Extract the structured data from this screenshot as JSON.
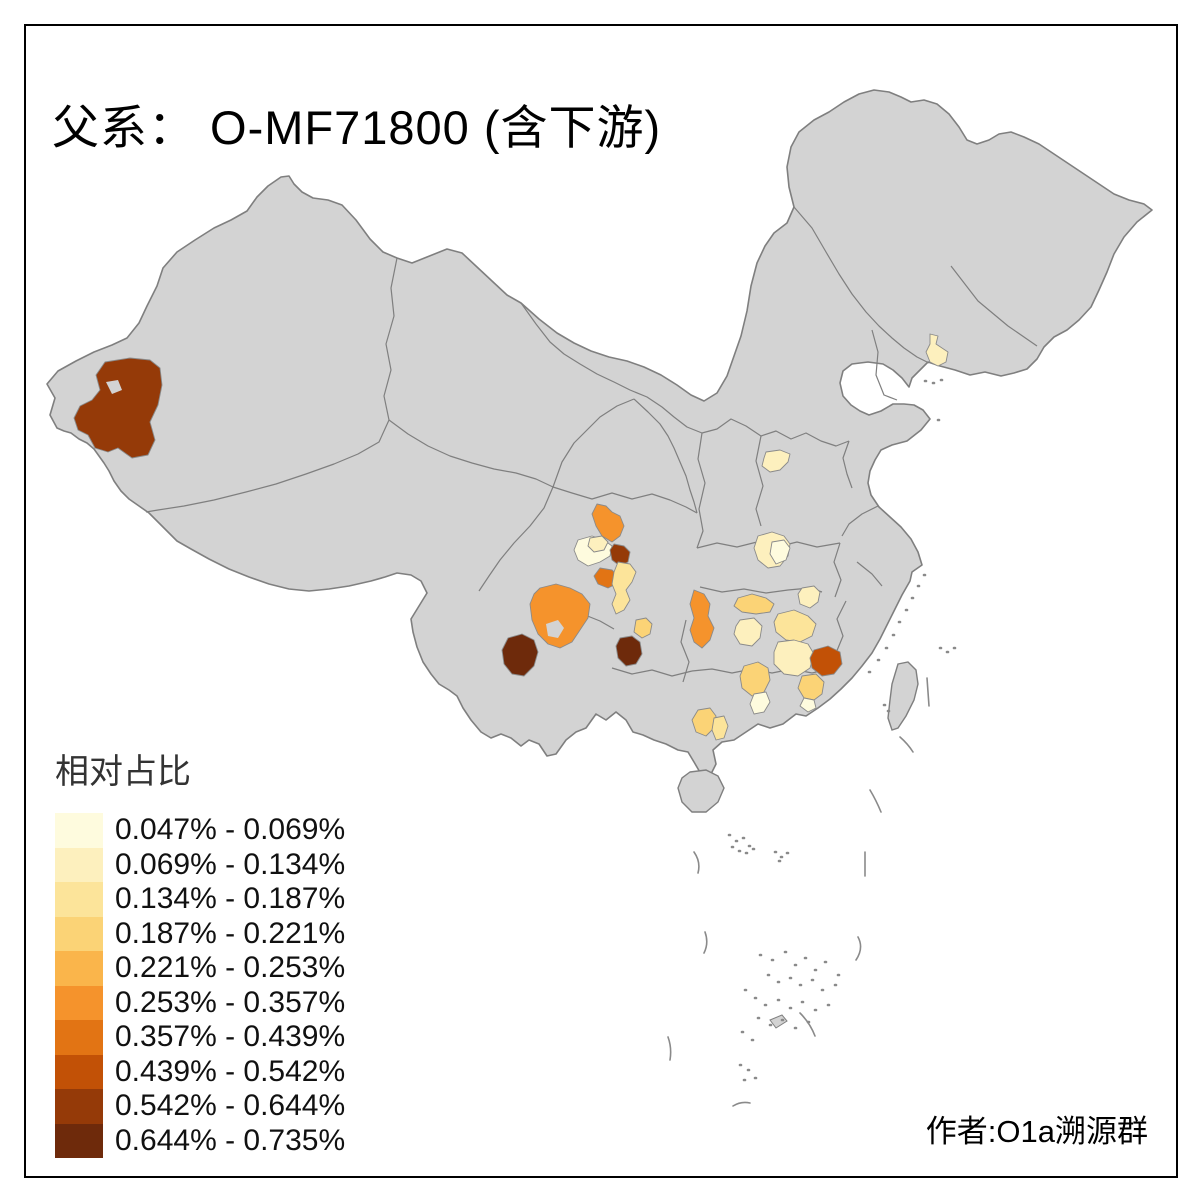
{
  "title": "父系： O-MF71800 (含下游)",
  "author": "作者:O1a溯源群",
  "legend": {
    "title": "相对占比",
    "bins": [
      {
        "label": "0.047% - 0.069%",
        "color": "#FEFBDE"
      },
      {
        "label": "0.069% - 0.134%",
        "color": "#FDF0BE"
      },
      {
        "label": "0.134% - 0.187%",
        "color": "#FCE49A"
      },
      {
        "label": "0.187% - 0.221%",
        "color": "#FBD376"
      },
      {
        "label": "0.221% - 0.253%",
        "color": "#FAB54B"
      },
      {
        "label": "0.253% - 0.357%",
        "color": "#F5932C"
      },
      {
        "label": "0.357% - 0.439%",
        "color": "#E27414"
      },
      {
        "label": "0.439% - 0.542%",
        "color": "#C25106"
      },
      {
        "label": "0.542% - 0.644%",
        "color": "#953A08"
      },
      {
        "label": "0.644% - 0.735%",
        "color": "#6E2A0B"
      }
    ]
  },
  "map": {
    "base_fill": "#D3D3D3",
    "border_color": "#7F7F7F",
    "background": "#FFFFFF",
    "regions": [
      {
        "id": "xinjiang-southwest",
        "bin": 9
      },
      {
        "id": "liaoning-central",
        "bin": 2
      },
      {
        "id": "henan-east",
        "bin": 2
      },
      {
        "id": "hubei-central",
        "bin": 2
      },
      {
        "id": "hubei-central-inner",
        "bin": 1
      },
      {
        "id": "sichuan-north",
        "bin": 6
      },
      {
        "id": "chengdu-plain",
        "bin": 1
      },
      {
        "id": "chengdu-north",
        "bin": 2
      },
      {
        "id": "sichuan-central-dark",
        "bin": 9
      },
      {
        "id": "sichuan-south-zigong",
        "bin": 7
      },
      {
        "id": "chongqing-west",
        "bin": 3
      },
      {
        "id": "sichuan-liangshan",
        "bin": 6
      },
      {
        "id": "yunnan-west-dali",
        "bin": 10
      },
      {
        "id": "guizhou-anshun",
        "bin": 10
      },
      {
        "id": "guizhou-south",
        "bin": 4
      },
      {
        "id": "hunan-west-huaihua",
        "bin": 6
      },
      {
        "id": "hunan-central-loudi",
        "bin": 4
      },
      {
        "id": "hunan-hengyang",
        "bin": 2
      },
      {
        "id": "jiangxi-nanchang",
        "bin": 2
      },
      {
        "id": "jiangxi-jian",
        "bin": 3
      },
      {
        "id": "jiangxi-ganzhou",
        "bin": 2
      },
      {
        "id": "fujian-south",
        "bin": 8
      },
      {
        "id": "guangdong-meizhou",
        "bin": 4
      },
      {
        "id": "guangdong-chaoshan",
        "bin": 1
      },
      {
        "id": "hunan-chenzhou",
        "bin": 4
      },
      {
        "id": "guangdong-shaoguan",
        "bin": 1
      },
      {
        "id": "guangdong-west-yunfu",
        "bin": 4
      },
      {
        "id": "guangdong-yangjiang",
        "bin": 3
      }
    ]
  },
  "chart_data": {
    "type": "choropleth_map",
    "title": "父系： O-MF71800 (含下游)",
    "legend_title": "相对占比",
    "unit": "percent relative share",
    "bins": [
      [
        0.047,
        0.069
      ],
      [
        0.069,
        0.134
      ],
      [
        0.134,
        0.187
      ],
      [
        0.187,
        0.221
      ],
      [
        0.221,
        0.253
      ],
      [
        0.253,
        0.357
      ],
      [
        0.357,
        0.439
      ],
      [
        0.439,
        0.542
      ],
      [
        0.542,
        0.644
      ],
      [
        0.644,
        0.735
      ]
    ],
    "region_bin_assignments": {
      "xinjiang-southwest": 9,
      "liaoning-central": 2,
      "henan-east": 2,
      "hubei-central": 2,
      "hubei-central-inner": 1,
      "sichuan-north": 6,
      "chengdu-plain": 1,
      "chengdu-north": 2,
      "sichuan-central-dark": 9,
      "sichuan-south-zigong": 7,
      "chongqing-west": 3,
      "sichuan-liangshan": 6,
      "yunnan-west-dali": 10,
      "guizhou-anshun": 10,
      "guizhou-south": 4,
      "hunan-west-huaihua": 6,
      "hunan-central-loudi": 4,
      "hunan-hengyang": 2,
      "jiangxi-nanchang": 2,
      "jiangxi-jian": 3,
      "jiangxi-ganzhou": 2,
      "fujian-south": 8,
      "guangdong-meizhou": 4,
      "guangdong-chaoshan": 1,
      "hunan-chenzhou": 4,
      "guangdong-shaoguan": 1,
      "guangdong-west-yunfu": 4,
      "guangdong-yangjiang": 3
    },
    "legend_position": "bottom-left",
    "author_note": "作者:O1a溯源群"
  }
}
